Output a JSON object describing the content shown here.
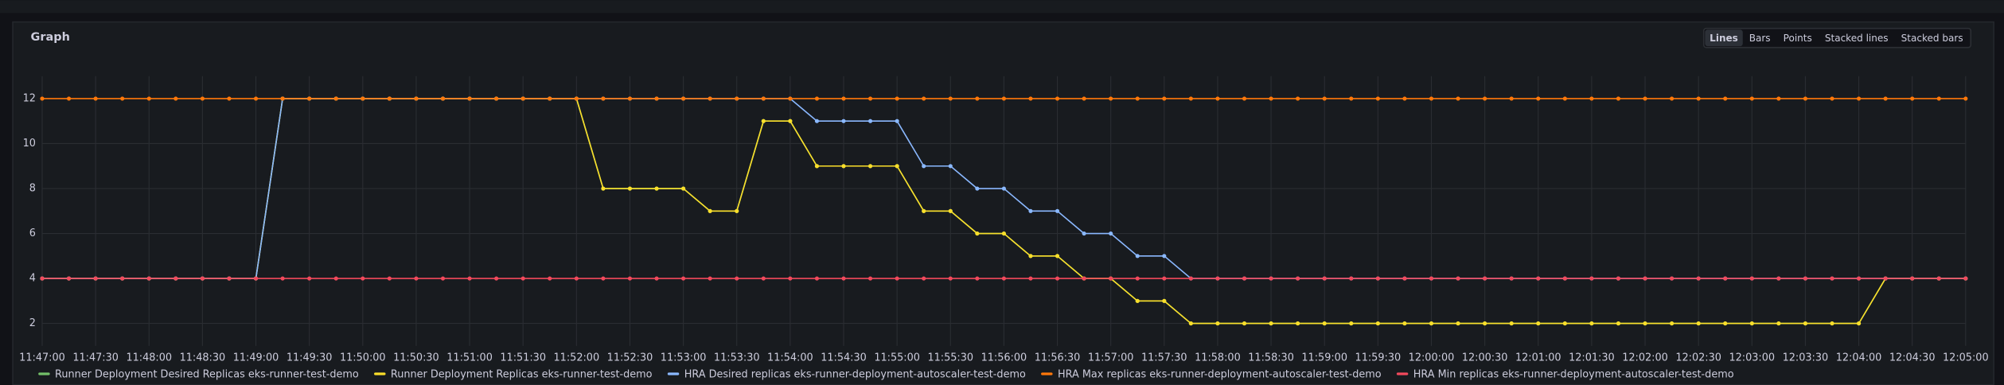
{
  "panel": {
    "title": "Graph",
    "view_options": [
      "Lines",
      "Bars",
      "Points",
      "Stacked lines",
      "Stacked bars"
    ],
    "selected_view": "Lines"
  },
  "chart_data": {
    "type": "line",
    "grid": true,
    "legend": "bottom",
    "categories": [
      "11:47:00",
      null,
      "11:47:30",
      null,
      "11:48:00",
      null,
      "11:48:30",
      null,
      "11:49:00",
      null,
      "11:49:30",
      null,
      "11:50:00",
      null,
      "11:50:30",
      null,
      "11:51:00",
      null,
      "11:51:30",
      null,
      "11:52:00",
      null,
      "11:52:30",
      null,
      "11:53:00",
      null,
      "11:53:30",
      null,
      "11:54:00",
      null,
      "11:54:30",
      null,
      "11:55:00",
      null,
      "11:55:30",
      null,
      "11:56:00",
      null,
      "11:56:30",
      null,
      "11:57:00",
      null,
      "11:57:30",
      null,
      "11:58:00",
      null,
      "11:58:30",
      null,
      "11:59:00",
      null,
      "11:59:30",
      null,
      "12:00:00",
      null,
      "12:00:30",
      null,
      "12:01:00",
      null,
      "12:01:30",
      null,
      "12:02:00",
      null,
      "12:02:30",
      null,
      "12:03:00",
      null,
      "12:03:30",
      null,
      "12:04:00",
      null,
      "12:04:30",
      null,
      "12:05:00"
    ],
    "ylim": [
      1,
      13
    ],
    "yticks": [
      2,
      4,
      6,
      8,
      10,
      12
    ],
    "series": [
      {
        "name": "Runner Deployment Desired Replicas eks-runner-test-demo",
        "color": "#73bf69",
        "values": [
          4,
          4,
          4,
          4,
          4,
          4,
          4,
          4,
          4,
          12,
          12,
          12,
          12,
          12,
          12,
          12,
          12,
          12,
          12,
          12,
          12,
          8,
          8,
          8,
          8,
          7,
          7,
          11,
          11,
          9,
          9,
          9,
          9,
          7,
          7,
          6,
          6,
          5,
          5,
          4,
          4,
          3,
          3,
          2,
          2,
          2,
          2,
          2,
          2,
          2,
          2,
          2,
          2,
          2,
          2,
          2,
          2,
          2,
          2,
          2,
          2,
          2,
          2,
          2,
          2,
          2,
          2,
          2,
          2,
          4,
          4,
          4,
          4
        ]
      },
      {
        "name": "Runner Deployment Replicas eks-runner-test-demo",
        "color": "#fade2a",
        "values": [
          4,
          4,
          4,
          4,
          4,
          4,
          4,
          4,
          4,
          12,
          12,
          12,
          12,
          12,
          12,
          12,
          12,
          12,
          12,
          12,
          12,
          8,
          8,
          8,
          8,
          7,
          7,
          11,
          11,
          9,
          9,
          9,
          9,
          7,
          7,
          6,
          6,
          5,
          5,
          4,
          4,
          3,
          3,
          2,
          2,
          2,
          2,
          2,
          2,
          2,
          2,
          2,
          2,
          2,
          2,
          2,
          2,
          2,
          2,
          2,
          2,
          2,
          2,
          2,
          2,
          2,
          2,
          2,
          2,
          4,
          4,
          4,
          4
        ]
      },
      {
        "name": "HRA Desired replicas eks-runner-deployment-autoscaler-test-demo",
        "color": "#8ab8ff",
        "values": [
          4,
          4,
          4,
          4,
          4,
          4,
          4,
          4,
          4,
          12,
          12,
          12,
          12,
          12,
          12,
          12,
          12,
          12,
          12,
          12,
          12,
          12,
          12,
          12,
          12,
          12,
          12,
          12,
          12,
          11,
          11,
          11,
          11,
          9,
          9,
          8,
          8,
          7,
          7,
          6,
          6,
          5,
          5,
          4,
          4,
          4,
          4,
          4,
          4,
          4,
          4,
          4,
          4,
          4,
          4,
          4,
          4,
          4,
          4,
          4,
          4,
          4,
          4,
          4,
          4,
          4,
          4,
          4,
          4,
          4,
          4,
          4,
          4
        ]
      },
      {
        "name": "HRA Max replicas eks-runner-deployment-autoscaler-test-demo",
        "color": "#ff780a",
        "values": [
          12,
          12,
          12,
          12,
          12,
          12,
          12,
          12,
          12,
          12,
          12,
          12,
          12,
          12,
          12,
          12,
          12,
          12,
          12,
          12,
          12,
          12,
          12,
          12,
          12,
          12,
          12,
          12,
          12,
          12,
          12,
          12,
          12,
          12,
          12,
          12,
          12,
          12,
          12,
          12,
          12,
          12,
          12,
          12,
          12,
          12,
          12,
          12,
          12,
          12,
          12,
          12,
          12,
          12,
          12,
          12,
          12,
          12,
          12,
          12,
          12,
          12,
          12,
          12,
          12,
          12,
          12,
          12,
          12,
          12,
          12,
          12,
          12
        ]
      },
      {
        "name": "HRA Min replicas eks-runner-deployment-autoscaler-test-demo",
        "color": "#f2495c",
        "values": [
          4,
          4,
          4,
          4,
          4,
          4,
          4,
          4,
          4,
          4,
          4,
          4,
          4,
          4,
          4,
          4,
          4,
          4,
          4,
          4,
          4,
          4,
          4,
          4,
          4,
          4,
          4,
          4,
          4,
          4,
          4,
          4,
          4,
          4,
          4,
          4,
          4,
          4,
          4,
          4,
          4,
          4,
          4,
          4,
          4,
          4,
          4,
          4,
          4,
          4,
          4,
          4,
          4,
          4,
          4,
          4,
          4,
          4,
          4,
          4,
          4,
          4,
          4,
          4,
          4,
          4,
          4,
          4,
          4,
          4,
          4,
          4,
          4
        ]
      }
    ]
  }
}
